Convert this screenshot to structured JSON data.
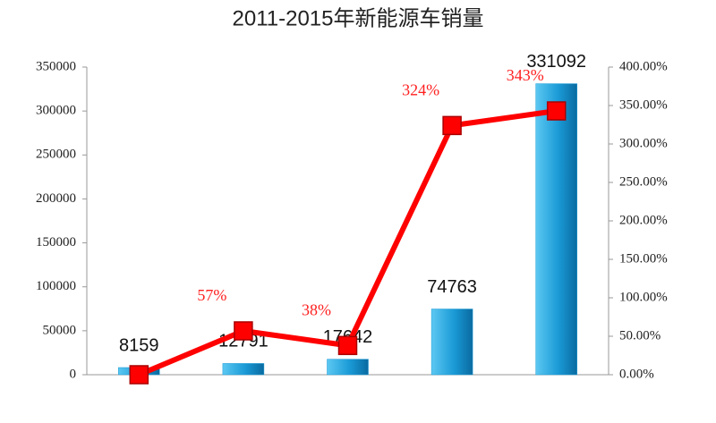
{
  "chart_data": {
    "type": "combo",
    "title": "2011-2015年新能源车销量",
    "categories": [
      null,
      null,
      null,
      null,
      null
    ],
    "series": [
      {
        "type": "bar",
        "color": "#1a9ad6",
        "values": [
          8159,
          12791,
          17642,
          74763,
          331092
        ]
      },
      {
        "type": "line",
        "axis": "y2",
        "color": "#ff0000",
        "values": [
          0,
          57,
          38,
          324,
          343
        ],
        "value_labels": [
          null,
          "57%",
          "38%",
          "324%",
          "343%"
        ]
      }
    ],
    "ylim": [
      0,
      350000
    ],
    "yticks": [
      0,
      50000,
      100000,
      150000,
      200000,
      250000,
      300000,
      350000
    ],
    "y2lim": [
      0,
      400
    ],
    "y2ticks": [
      {
        "value": 0,
        "label": "0.00%"
      },
      {
        "value": 50,
        "label": "50.00%"
      },
      {
        "value": 100,
        "label": "100.00%"
      },
      {
        "value": 150,
        "label": "150.00%"
      },
      {
        "value": 200,
        "label": "200.00%"
      },
      {
        "value": 250,
        "label": "250.00%"
      },
      {
        "value": 300,
        "label": "300.00%"
      },
      {
        "value": 350,
        "label": "350.00%"
      },
      {
        "value": 400,
        "label": "400.00%"
      }
    ]
  }
}
